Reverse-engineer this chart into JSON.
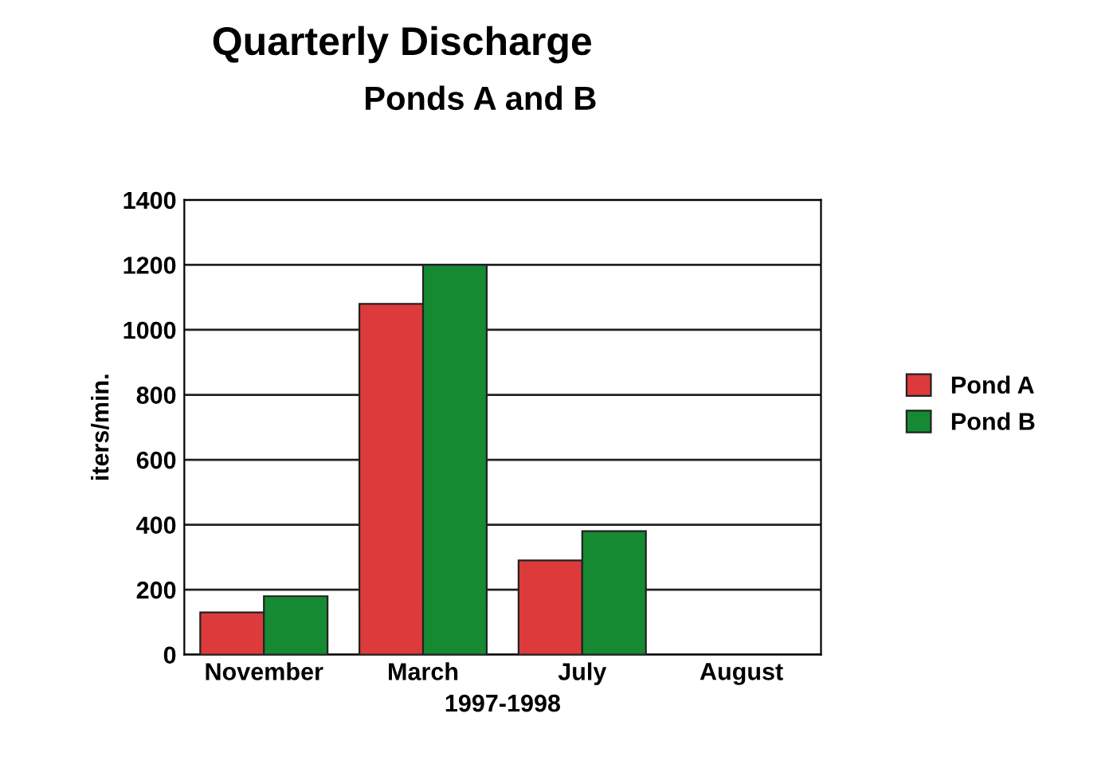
{
  "chart_data": {
    "type": "bar",
    "title": "Quarterly Discharge",
    "subtitle": "Ponds A and B",
    "xlabel": "1997-1998",
    "ylabel": "iters/min.",
    "categories": [
      "November",
      "March",
      "July",
      "August"
    ],
    "series": [
      {
        "name": "Pond A",
        "color": "#dd3b3b",
        "values": [
          130,
          1080,
          290,
          null
        ]
      },
      {
        "name": "Pond B",
        "color": "#168a32",
        "values": [
          180,
          1200,
          380,
          null
        ]
      }
    ],
    "ylim": [
      0,
      1400
    ],
    "yticks": [
      0,
      200,
      400,
      600,
      800,
      1000,
      1200,
      1400
    ],
    "grid": "y",
    "legend": "right"
  }
}
